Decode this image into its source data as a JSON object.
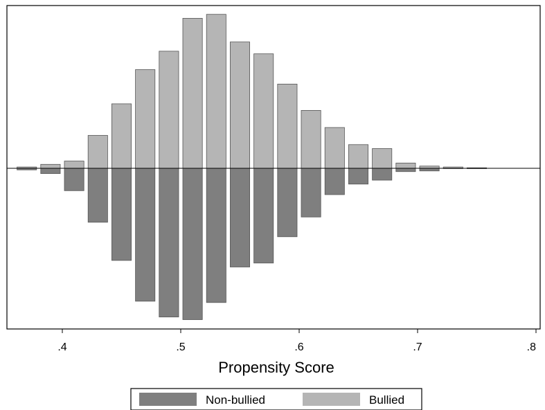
{
  "chart_data": {
    "type": "bar",
    "subtype": "mirrored-histogram",
    "title": "",
    "xlabel": "Propensity Score",
    "ylabel": "",
    "xlim": [
      0.36,
      0.81
    ],
    "ylim": [
      -1.2,
      1.2
    ],
    "grid": false,
    "legend_position": "bottom",
    "x_ticks": [
      0.4,
      0.5,
      0.6,
      0.7,
      0.8
    ],
    "x_tick_labels": [
      ".4",
      ".5",
      ".6",
      ".7",
      ".8"
    ],
    "bin_width": 0.02,
    "bin_centers": [
      0.37,
      0.39,
      0.41,
      0.43,
      0.45,
      0.47,
      0.49,
      0.51,
      0.53,
      0.55,
      0.57,
      0.59,
      0.61,
      0.63,
      0.65,
      0.67,
      0.69,
      0.71,
      0.73,
      0.75
    ],
    "series": [
      {
        "name": "Non-bullied",
        "color": "#7f7f7f",
        "direction": "down",
        "values": [
          0.012,
          0.04,
          0.17,
          0.41,
          0.7,
          1.01,
          1.13,
          1.15,
          1.02,
          0.75,
          0.72,
          0.52,
          0.37,
          0.2,
          0.12,
          0.09,
          0.025,
          0.02,
          0.002,
          0.001
        ]
      },
      {
        "name": "Bullied",
        "color": "#b5b5b5",
        "direction": "up",
        "values": [
          0.01,
          0.03,
          0.055,
          0.25,
          0.49,
          0.75,
          0.89,
          1.14,
          1.17,
          0.96,
          0.87,
          0.64,
          0.44,
          0.31,
          0.18,
          0.15,
          0.04,
          0.017,
          0.01,
          0.004
        ]
      }
    ]
  }
}
